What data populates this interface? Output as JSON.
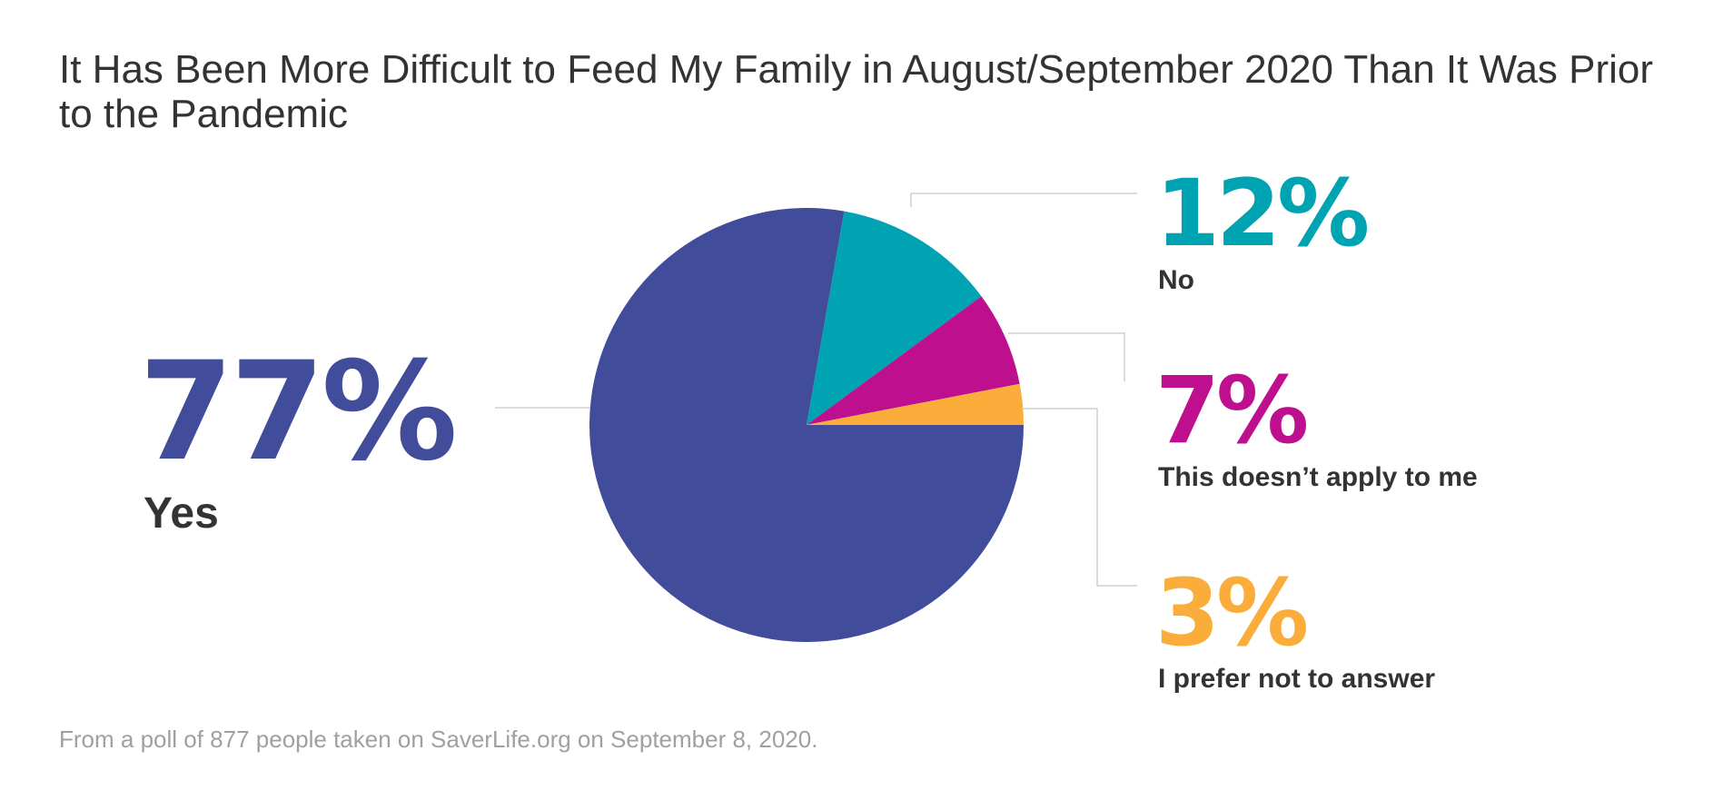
{
  "chart_data": {
    "type": "pie",
    "title": "It Has Been More Difficult to Feed My Family in August/September 2020 Than It Was Prior to the Pandemic",
    "slices": [
      {
        "label": "Yes",
        "value": 77,
        "display": "77%",
        "color": "#414c9b"
      },
      {
        "label": "No",
        "value": 12,
        "display": "12%",
        "color": "#00a3b2"
      },
      {
        "label": "This doesn’t apply to me",
        "value": 7,
        "display": "7%",
        "color": "#be108e"
      },
      {
        "label": "I prefer not to answer",
        "value": 3,
        "display": "3%",
        "color": "#fbad3c"
      }
    ],
    "footnote": "From a poll of 877 people taken on SaverLife.org on September 8, 2020."
  }
}
